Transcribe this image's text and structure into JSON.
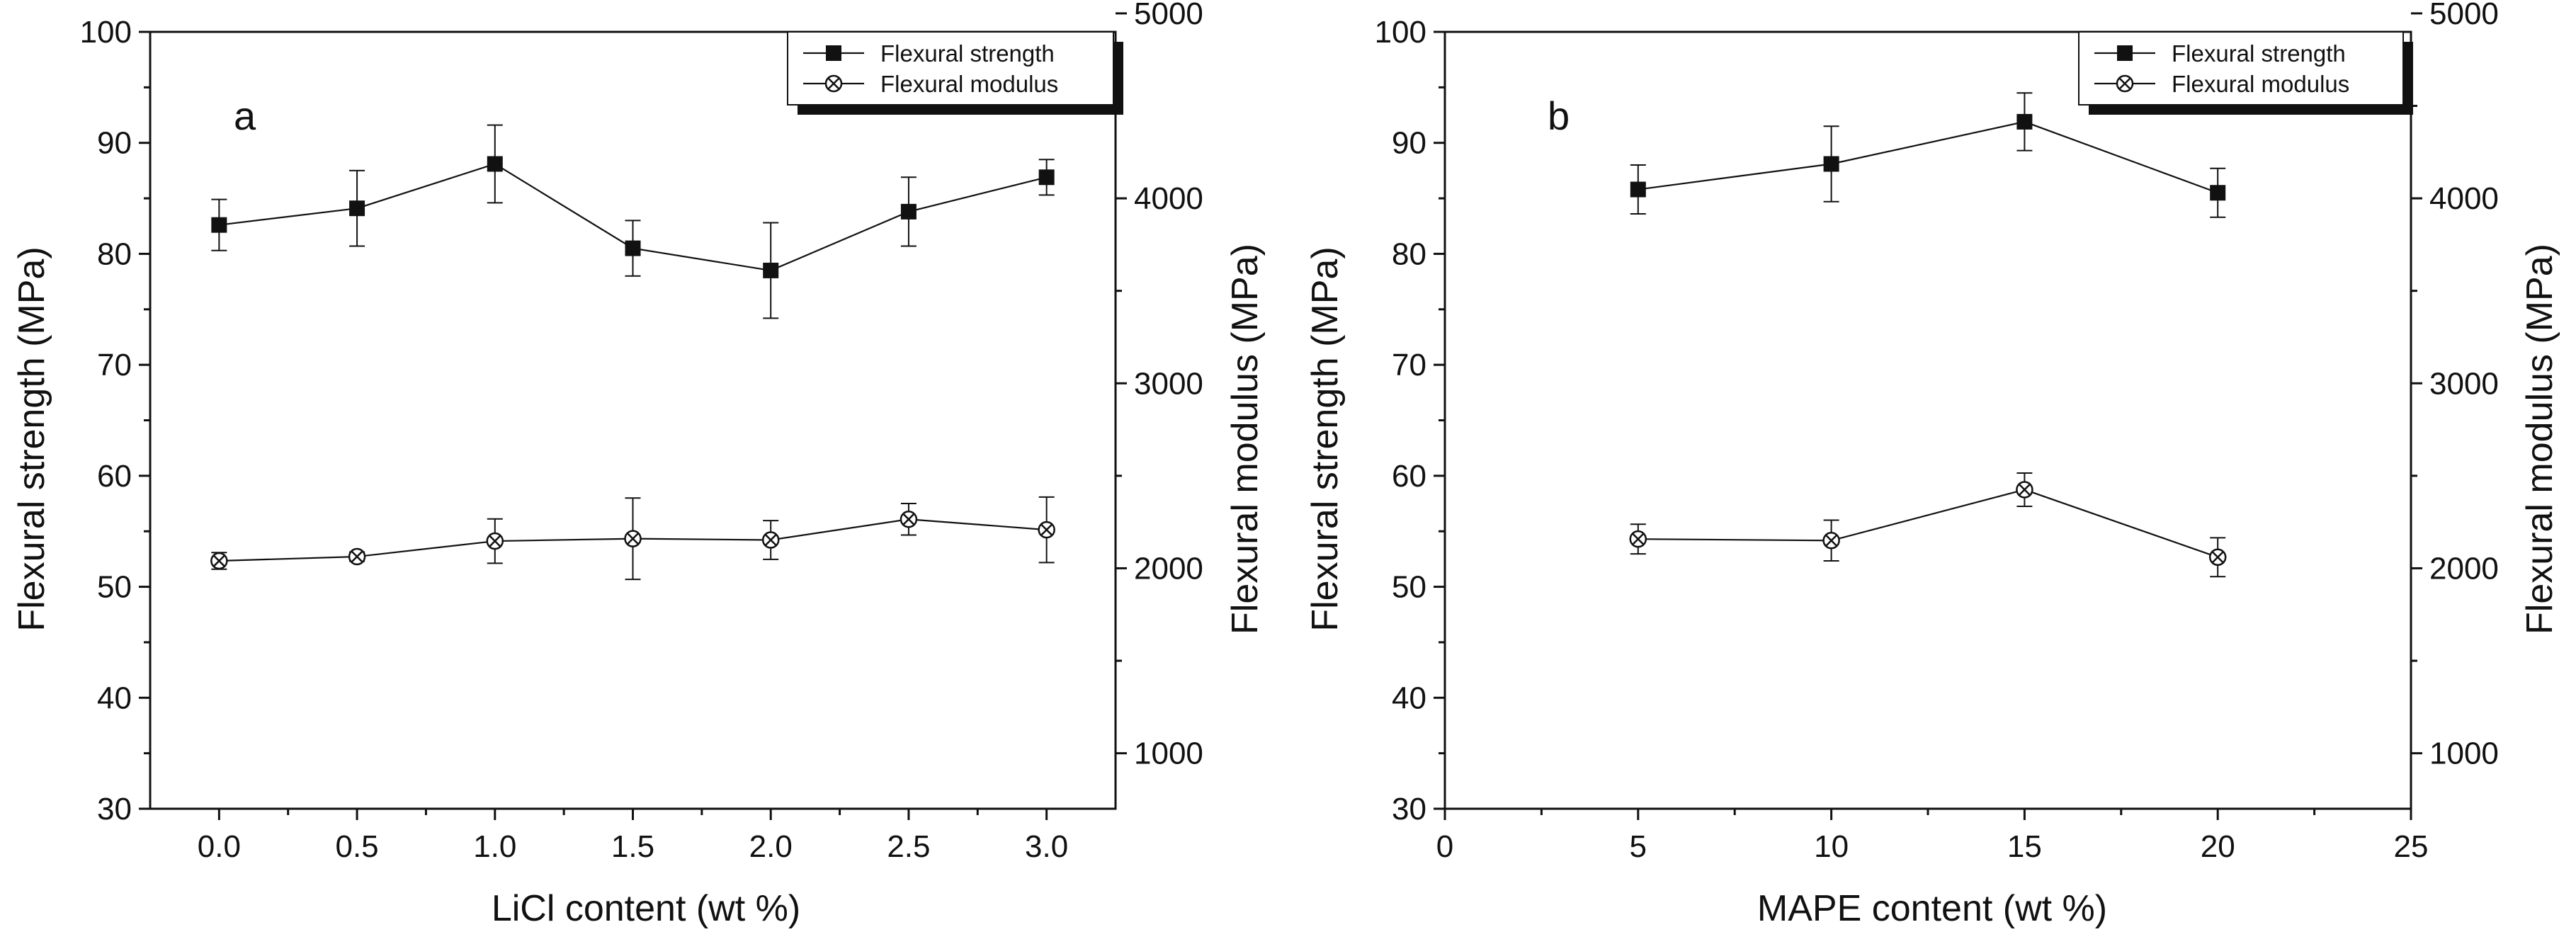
{
  "chart_data": [
    {
      "type": "line",
      "panel_label": "a",
      "xlabel": "LiCl content (wt %)",
      "ylabel_left": "Flexural strength (MPa)",
      "ylabel_right": "Flexural modulus (MPa)",
      "xlim": [
        -0.25,
        3.25
      ],
      "x_ticks": [
        "0.0",
        "0.5",
        "1.0",
        "1.5",
        "2.0",
        "2.5",
        "3.0"
      ],
      "ylim_left": [
        30,
        100
      ],
      "y_ticks_left": [
        "30",
        "40",
        "50",
        "60",
        "70",
        "80",
        "90",
        "100"
      ],
      "ylim_right": [
        700,
        4900
      ],
      "y_ticks_right": [
        "1000",
        "2000",
        "3000",
        "4000",
        "5000"
      ],
      "legend_position": "top-right",
      "series": [
        {
          "name": "Flexural strength",
          "axis": "left",
          "marker": "filled-square",
          "x": [
            0.0,
            0.5,
            1.0,
            1.5,
            2.0,
            2.5,
            3.0
          ],
          "values": [
            82.6,
            84.1,
            88.1,
            80.5,
            78.5,
            83.8,
            86.9
          ],
          "errors": [
            2.3,
            3.4,
            3.5,
            2.5,
            4.3,
            3.1,
            1.6
          ]
        },
        {
          "name": "Flexural modulus",
          "axis": "right",
          "marker": "crossed-circle",
          "x": [
            0.0,
            0.5,
            1.0,
            1.5,
            2.0,
            2.5,
            3.0
          ],
          "values": [
            2040,
            2063,
            2147,
            2160,
            2153,
            2265,
            2208
          ],
          "errors": [
            45,
            25,
            120,
            220,
            105,
            85,
            177
          ]
        }
      ]
    },
    {
      "type": "line",
      "panel_label": "b",
      "xlabel": "MAPE content (wt %)",
      "ylabel_left": "Flexural strength (MPa)",
      "ylabel_right": "Flexural modulus (MPa)",
      "xlim": [
        0,
        25
      ],
      "x_ticks": [
        "0",
        "5",
        "10",
        "15",
        "20",
        "25"
      ],
      "ylim_left": [
        30,
        100
      ],
      "y_ticks_left": [
        "30",
        "40",
        "50",
        "60",
        "70",
        "80",
        "90",
        "100"
      ],
      "ylim_right": [
        700,
        4900
      ],
      "y_ticks_right": [
        "1000",
        "2000",
        "3000",
        "4000",
        "5000"
      ],
      "legend_position": "top-right",
      "series": [
        {
          "name": "Flexural strength",
          "axis": "left",
          "marker": "filled-square",
          "x": [
            5,
            10,
            15,
            20
          ],
          "values": [
            85.8,
            88.1,
            91.9,
            85.5
          ],
          "errors": [
            2.2,
            3.4,
            2.6,
            2.2
          ]
        },
        {
          "name": "Flexural modulus",
          "axis": "right",
          "marker": "crossed-circle",
          "x": [
            5,
            10,
            15,
            20
          ],
          "values": [
            2158,
            2150,
            2425,
            2060
          ],
          "errors": [
            80,
            110,
            90,
            105
          ]
        }
      ]
    }
  ],
  "colors": {
    "ink": "#111111",
    "background": "#ffffff"
  }
}
